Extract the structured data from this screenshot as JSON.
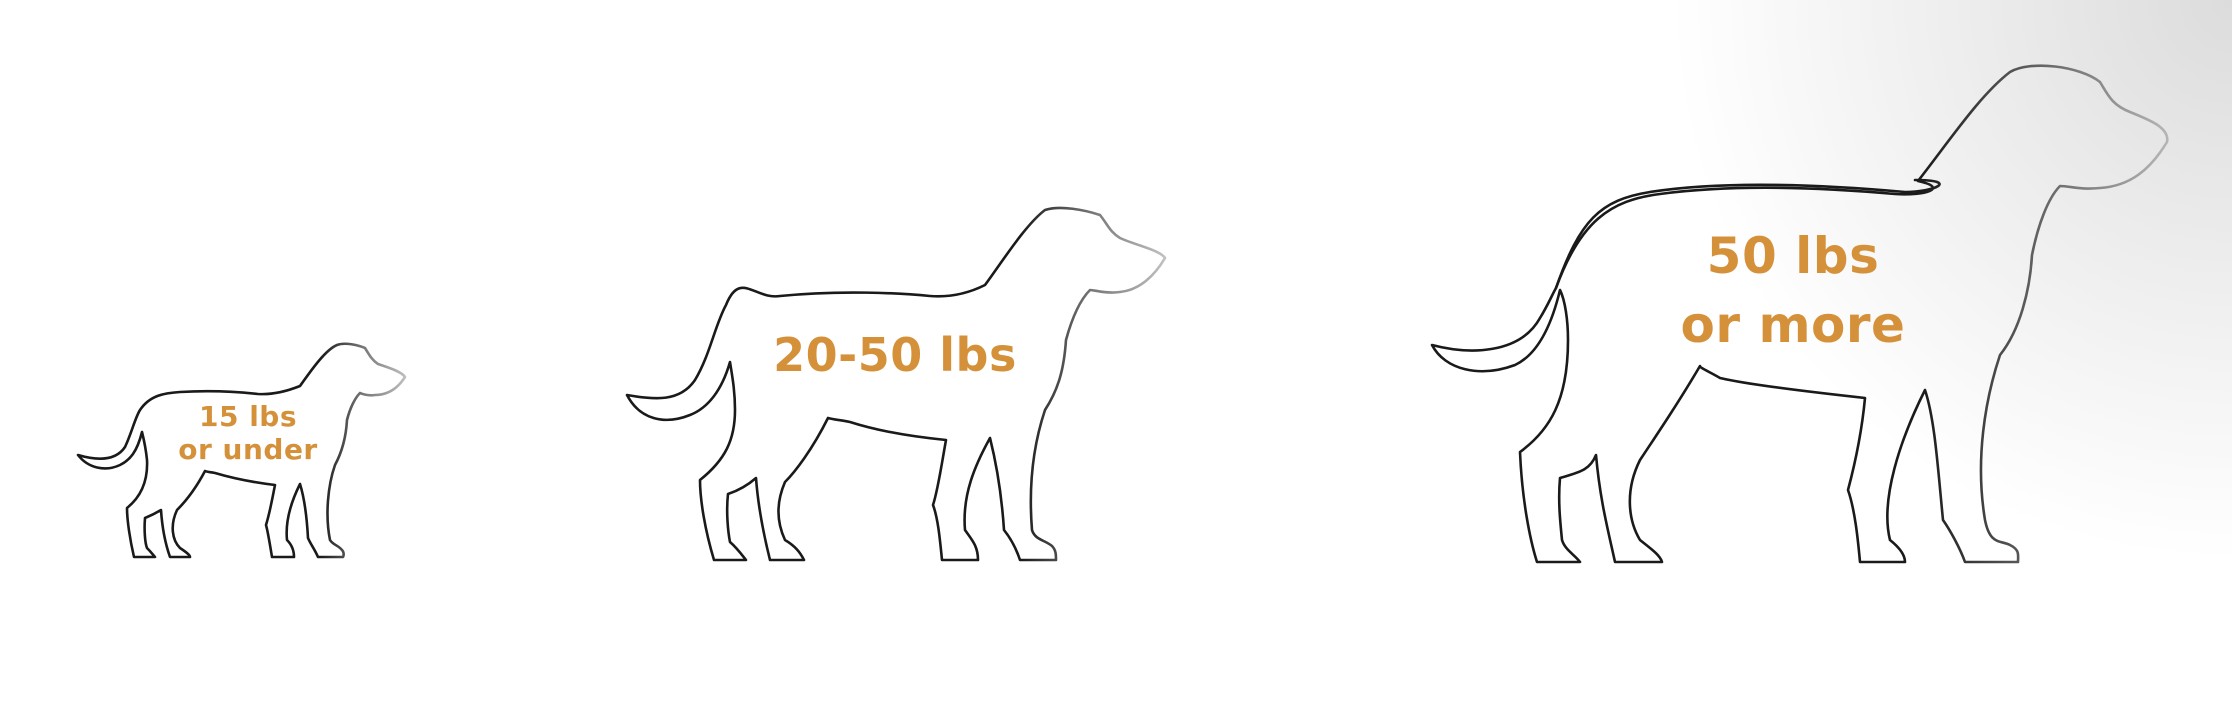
{
  "colors": {
    "label": "#d4913a",
    "outline": "#1a1a1a",
    "background": "#ffffff",
    "vignette": "#e8e8e8"
  },
  "sizes": [
    {
      "label": "15 lbs or under",
      "icon": "dog-outline-small-icon"
    },
    {
      "label": "20-50 lbs",
      "icon": "dog-outline-medium-icon"
    },
    {
      "label": "50 lbs or more",
      "icon": "dog-outline-large-icon"
    }
  ]
}
